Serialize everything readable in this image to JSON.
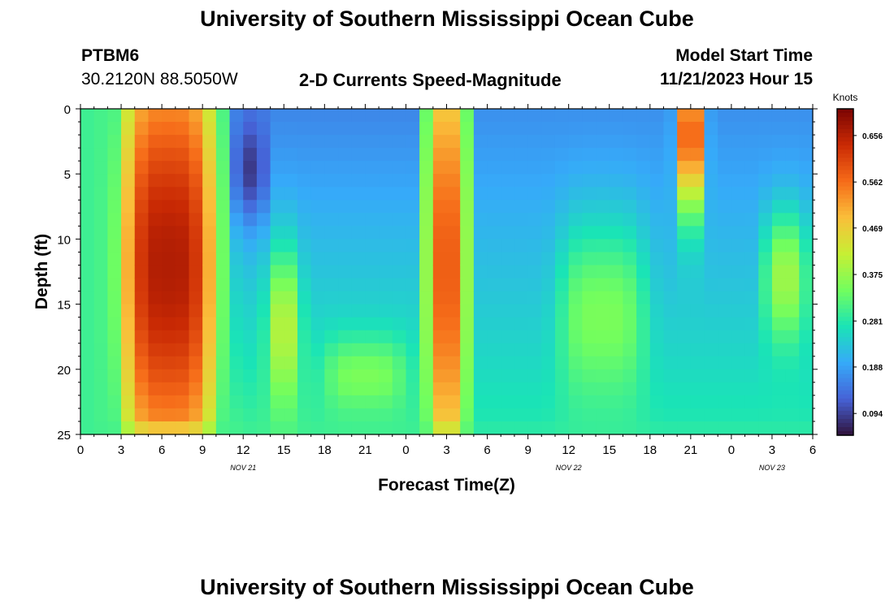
{
  "page": {
    "title": "University of Southern Mississippi Ocean Cube",
    "station": "PTBM6",
    "coordinates": "30.2120N  88.5050W",
    "plot_title": "2-D Currents Speed-Magnitude",
    "model_start_label": "Model Start Time",
    "model_start_value": "11/21/2023 Hour 15",
    "footer_title": "University of Southern Mississippi Ocean Cube"
  },
  "chart_data": {
    "type": "heatmap",
    "title": "2-D Currents Speed-Magnitude",
    "xlabel": "Forecast Time(Z)",
    "ylabel": "Depth (ft)",
    "x_ticks": [
      "0",
      "3",
      "6",
      "9",
      "12",
      "15",
      "18",
      "21",
      "0",
      "3",
      "6",
      "9",
      "12",
      "15",
      "18",
      "21",
      "0",
      "3",
      "6"
    ],
    "x_hours_range": [
      0,
      54
    ],
    "date_labels": [
      {
        "text": "NOV 21",
        "hour": 12
      },
      {
        "text": "NOV 22",
        "hour": 36
      },
      {
        "text": "NOV 23",
        "hour": 51
      }
    ],
    "y_ticks": [
      0,
      5,
      10,
      15,
      20,
      25
    ],
    "ylim": [
      0,
      25
    ],
    "y_inverted": true,
    "colorbar": {
      "label": "Knots",
      "ticks": [
        0.094,
        0.188,
        0.281,
        0.375,
        0.469,
        0.562,
        0.656
      ],
      "range": [
        0.05,
        0.71
      ]
    },
    "field_description": "Speed (knots) by forecast hour and depth; values estimated from color",
    "grid": {
      "x_step_hours": 1,
      "y_step_ft": 1
    },
    "field_features": [
      {
        "t_center": 6.5,
        "t_halfwidth": 3.6,
        "d_center": 12,
        "d_halfwidth": 20,
        "peak": 0.66
      },
      {
        "t_center": 27,
        "t_halfwidth": 1.5,
        "d_center": 12,
        "d_halfwidth": 20,
        "peak": 0.58
      },
      {
        "t_center": 45,
        "t_halfwidth": 1.1,
        "d_center": 2,
        "d_halfwidth": 6,
        "peak": 0.58
      },
      {
        "t_center": 15,
        "t_halfwidth": 1.3,
        "d_center": 17,
        "d_halfwidth": 6,
        "peak": 0.4
      },
      {
        "t_center": 38.5,
        "t_halfwidth": 3.2,
        "d_center": 16,
        "d_halfwidth": 7,
        "peak": 0.35
      },
      {
        "t_center": 52,
        "t_halfwidth": 1.6,
        "d_center": 13,
        "d_halfwidth": 5,
        "peak": 0.38
      },
      {
        "t_center": 21,
        "t_halfwidth": 3.0,
        "d_center": 20.5,
        "d_halfwidth": 2.8,
        "peak": 0.35
      },
      {
        "t_center": 12.5,
        "t_halfwidth": 1.2,
        "d_center": 5,
        "d_halfwidth": 4,
        "peak": -0.1
      }
    ],
    "field_baseline": [
      {
        "t_from": 0,
        "t_to": 2,
        "value": 0.3
      },
      {
        "t_from": 11,
        "t_to": 25,
        "value_surface": 0.16,
        "value_bottom": 0.3
      },
      {
        "t_from": 29,
        "t_to": 54,
        "value_surface": 0.17,
        "value_bottom": 0.28
      }
    ],
    "colormap": [
      "#30123b",
      "#4662d7",
      "#36aaf9",
      "#1ae4b6",
      "#72fe5e",
      "#c7ef34",
      "#fabf3a",
      "#f66b19",
      "#ca2a04",
      "#7a0403"
    ]
  }
}
